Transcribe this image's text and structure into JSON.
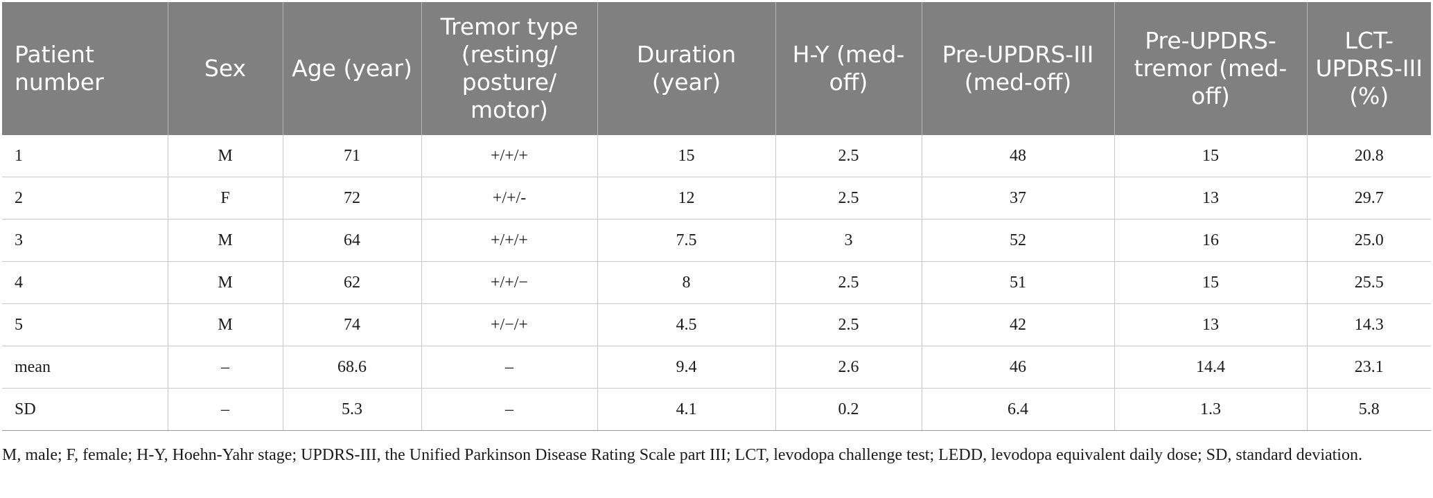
{
  "table": {
    "headers": [
      "Patient number",
      "Sex",
      "Age (year)",
      "Tremor type (resting/ posture/ motor)",
      "Duration (year)",
      "H-Y (med-off)",
      "Pre-UPDRS-III (med-off)",
      "Pre-UPDRS-tremor (med-off)",
      "LCT-UPDRS-III (%)"
    ],
    "rows": [
      [
        "1",
        "M",
        "71",
        "+/+/+",
        "15",
        "2.5",
        "48",
        "15",
        "20.8"
      ],
      [
        "2",
        "F",
        "72",
        "+/+/-",
        "12",
        "2.5",
        "37",
        "13",
        "29.7"
      ],
      [
        "3",
        "M",
        "64",
        "+/+/+",
        "7.5",
        "3",
        "52",
        "16",
        "25.0"
      ],
      [
        "4",
        "M",
        "62",
        "+/+/−",
        "8",
        "2.5",
        "51",
        "15",
        "25.5"
      ],
      [
        "5",
        "M",
        "74",
        "+/−/+",
        "4.5",
        "2.5",
        "42",
        "13",
        "14.3"
      ],
      [
        "mean",
        "–",
        "68.6",
        "–",
        "9.4",
        "2.6",
        "46",
        "14.4",
        "23.1"
      ],
      [
        "SD",
        "–",
        "5.3",
        "–",
        "4.1",
        "0.2",
        "6.4",
        "1.3",
        "5.8"
      ]
    ]
  },
  "footnote": "M, male; F, female; H-Y, Hoehn-Yahr stage; UPDRS-III, the Unified Parkinson Disease Rating Scale part III; LCT, levodopa challenge test; LEDD, levodopa equivalent daily dose; SD, standard deviation."
}
